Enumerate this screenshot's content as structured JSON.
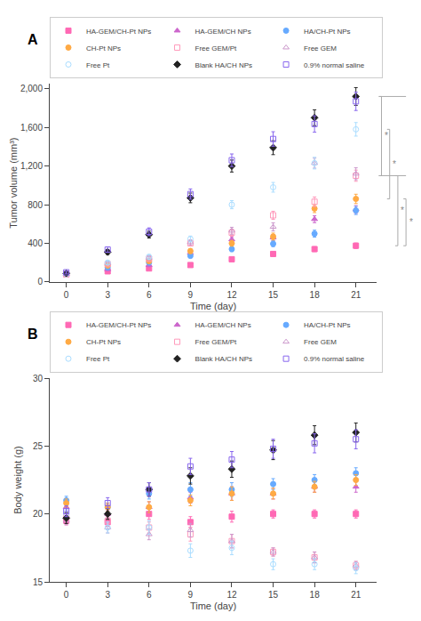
{
  "chart_data": [
    {
      "type": "scatter",
      "title": "A",
      "xlabel": "Time (day)",
      "ylabel": "Tumor volume (mm³)",
      "x": [
        0,
        3,
        6,
        9,
        12,
        15,
        18,
        21
      ],
      "xlim": [
        -1.2,
        22.5
      ],
      "xticks": [
        0,
        3,
        6,
        9,
        12,
        15,
        18,
        21
      ],
      "ylim": [
        0,
        2050
      ],
      "yticks": [
        0,
        400,
        800,
        {
          "value": 1200,
          "label": "1,200"
        },
        {
          "value": 1600,
          "label": "1,600"
        },
        {
          "value": 2000,
          "label": "2,000"
        }
      ],
      "grid": false,
      "legend": "top",
      "series": [
        {
          "name": "HA-GEM/CH-Pt NPs",
          "color": "#FF69B4",
          "marker": "square",
          "values": [
            80,
            110,
            140,
            175,
            235,
            290,
            340,
            375
          ],
          "errors": [
            8,
            10,
            12,
            15,
            18,
            22,
            25,
            28
          ]
        },
        {
          "name": "HA-GEM/CH NPs",
          "color": "#CC66CC",
          "marker": "triangle-up",
          "values": [
            80,
            130,
            175,
            300,
            440,
            460,
            650,
            750
          ],
          "errors": [
            8,
            13,
            17,
            22,
            28,
            30,
            36,
            40
          ]
        },
        {
          "name": "HA/CH-Pt NPs",
          "color": "#66AAFF",
          "marker": "circle",
          "values": [
            80,
            150,
            200,
            270,
            340,
            395,
            500,
            740
          ],
          "errors": [
            8,
            13,
            17,
            20,
            26,
            30,
            36,
            42
          ]
        },
        {
          "name": "CH-Pt NPs",
          "color": "#FFAA44",
          "marker": "circle",
          "values": [
            80,
            170,
            215,
            320,
            400,
            470,
            760,
            860
          ],
          "errors": [
            8,
            15,
            20,
            26,
            30,
            36,
            42,
            48
          ]
        },
        {
          "name": "Free GEM/Pt",
          "color": "#FF99BB",
          "marker": "square-open",
          "values": [
            80,
            185,
            240,
            400,
            510,
            690,
            830,
            1100
          ],
          "errors": [
            8,
            17,
            20,
            26,
            36,
            42,
            50,
            58
          ]
        },
        {
          "name": "Free GEM",
          "color": "#CC99CC",
          "marker": "triangle-up-open",
          "values": [
            80,
            195,
            250,
            410,
            530,
            570,
            1230,
            1120
          ],
          "errors": [
            8,
            17,
            20,
            26,
            36,
            42,
            52,
            62
          ]
        },
        {
          "name": "Free Pt",
          "color": "#AADDFF",
          "marker": "circle-open",
          "values": [
            80,
            200,
            260,
            445,
            800,
            980,
            1230,
            1580
          ],
          "errors": [
            8,
            18,
            24,
            30,
            42,
            50,
            60,
            70
          ]
        },
        {
          "name": "Blank HA/CH NPs",
          "color": "#222222",
          "marker": "diamond",
          "values": [
            90,
            310,
            490,
            870,
            1200,
            1390,
            1700,
            1920
          ],
          "errors": [
            9,
            26,
            36,
            50,
            62,
            72,
            82,
            92
          ]
        },
        {
          "name": "0.9% normal saline",
          "color": "#8866EE",
          "marker": "square-open",
          "values": [
            100,
            335,
            520,
            910,
            1260,
            1480,
            1635,
            1870
          ],
          "errors": [
            11,
            28,
            40,
            53,
            65,
            75,
            85,
            95
          ]
        }
      ],
      "annotations": [
        {
          "text": "*",
          "y": [
            1920,
            1100
          ]
        },
        {
          "text": "*",
          "y": [
            1580,
            860
          ]
        },
        {
          "text": "*",
          "y": [
            1100,
            375
          ]
        },
        {
          "text": "*",
          "y": [
            860,
            375
          ]
        }
      ]
    },
    {
      "type": "scatter",
      "title": "B",
      "xlabel": "Time (day)",
      "ylabel": "Body weight (g)",
      "x": [
        0,
        3,
        6,
        9,
        12,
        15,
        18,
        21
      ],
      "xlim": [
        -1.2,
        22.5
      ],
      "xticks": [
        0,
        3,
        6,
        9,
        12,
        15,
        18,
        21
      ],
      "ylim": [
        15,
        30
      ],
      "yticks": [
        15,
        20,
        25,
        30
      ],
      "grid": false,
      "legend": "top",
      "series": [
        {
          "name": "HA-GEM/CH-Pt NPs",
          "color": "#FF69B4",
          "marker": "square",
          "values": [
            19.5,
            19.4,
            20.0,
            19.4,
            19.8,
            20.0,
            20.0,
            20.0
          ],
          "errors": [
            0.3,
            0.3,
            0.4,
            0.4,
            0.4,
            0.3,
            0.3,
            0.3
          ]
        },
        {
          "name": "HA-GEM/CH NPs",
          "color": "#CC66CC",
          "marker": "triangle-up",
          "values": [
            20.5,
            20.0,
            20.5,
            21.2,
            21.5,
            21.5,
            22.0,
            22.0
          ],
          "errors": [
            0.3,
            0.3,
            0.4,
            0.4,
            0.5,
            0.4,
            0.4,
            0.4
          ]
        },
        {
          "name": "HA/CH-Pt NPs",
          "color": "#66AAFF",
          "marker": "circle",
          "values": [
            21.0,
            20.5,
            21.5,
            21.8,
            21.8,
            22.2,
            22.5,
            23.0
          ],
          "errors": [
            0.3,
            0.3,
            0.4,
            0.5,
            0.5,
            0.4,
            0.4,
            0.4
          ]
        },
        {
          "name": "CH-Pt NPs",
          "color": "#FFAA44",
          "marker": "circle",
          "values": [
            20.8,
            20.5,
            20.5,
            21.0,
            21.5,
            21.5,
            22.0,
            22.5
          ],
          "errors": [
            0.3,
            0.3,
            0.4,
            0.4,
            0.5,
            0.4,
            0.4,
            0.4
          ]
        },
        {
          "name": "Free GEM/Pt",
          "color": "#FF99BB",
          "marker": "square-open",
          "values": [
            19.8,
            19.5,
            19.0,
            18.5,
            18.0,
            17.2,
            16.8,
            16.2
          ],
          "errors": [
            0.3,
            0.3,
            0.4,
            0.5,
            0.5,
            0.3,
            0.4,
            0.3
          ]
        },
        {
          "name": "Free GEM",
          "color": "#CC99CC",
          "marker": "triangle-up-open",
          "values": [
            19.5,
            19.0,
            18.5,
            18.8,
            18.0,
            17.2,
            16.8,
            16.2
          ],
          "errors": [
            0.3,
            0.4,
            0.4,
            0.5,
            0.5,
            0.3,
            0.4,
            0.3
          ]
        },
        {
          "name": "Free Pt",
          "color": "#AADDFF",
          "marker": "circle-open",
          "values": [
            20.0,
            19.0,
            19.0,
            17.3,
            17.5,
            16.3,
            16.3,
            16.0
          ],
          "errors": [
            0.3,
            0.4,
            0.5,
            0.5,
            0.5,
            0.4,
            0.4,
            0.4
          ]
        },
        {
          "name": "Blank HA/CH NPs",
          "color": "#222222",
          "marker": "diamond",
          "values": [
            19.7,
            20.0,
            21.8,
            22.8,
            23.3,
            24.7,
            25.8,
            26.0
          ],
          "errors": [
            0.4,
            0.4,
            0.5,
            0.6,
            0.6,
            0.7,
            0.7,
            0.7
          ]
        },
        {
          "name": "0.9% normal saline",
          "color": "#8866EE",
          "marker": "square-open",
          "values": [
            20.2,
            20.8,
            21.8,
            23.5,
            24.0,
            24.8,
            25.2,
            25.5
          ],
          "errors": [
            0.4,
            0.4,
            0.5,
            0.6,
            0.6,
            0.7,
            0.7,
            0.7
          ]
        }
      ]
    }
  ]
}
